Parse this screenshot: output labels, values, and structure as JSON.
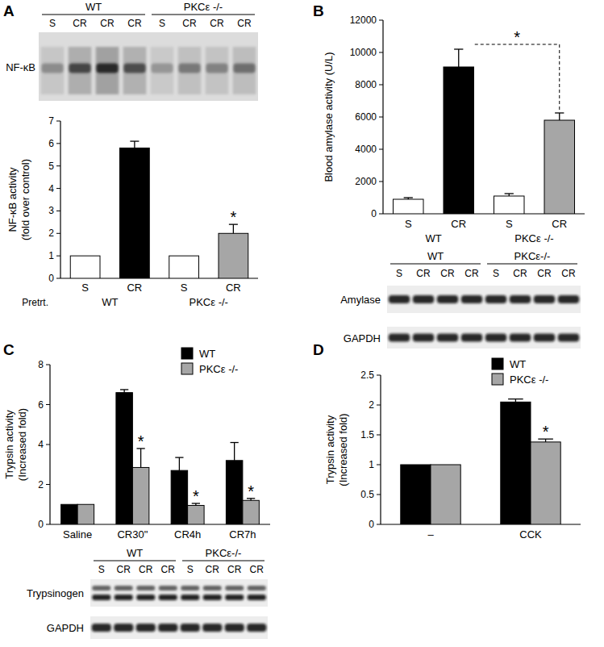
{
  "chart_data": [
    {
      "type": "bar",
      "panel": "A",
      "y_label": [
        "NF-κB activity",
        "(fold over control)"
      ],
      "x_label": "Pretrt.",
      "categories": [
        "S",
        "CR",
        "S",
        "CR"
      ],
      "groups": [
        "WT",
        "PKCε -/-"
      ],
      "values": [
        1,
        5.8,
        1,
        2
      ],
      "errors": [
        null,
        0.3,
        null,
        0.4
      ],
      "colors": [
        "#ffffff",
        "#000000",
        "#ffffff",
        "#a6a6a6"
      ],
      "ylim": [
        0,
        7
      ],
      "yticks": [
        0,
        1,
        2,
        3,
        4,
        5,
        6,
        7
      ],
      "grid": false,
      "annotations": [
        {
          "text": "*",
          "category": 3
        }
      ],
      "blot": {
        "groups": [
          "WT",
          "PKCε -/-"
        ],
        "lanes": [
          "S",
          "CR",
          "CR",
          "CR",
          "S",
          "CR",
          "CR",
          "CR"
        ],
        "rows": [
          "NF-κB"
        ]
      }
    },
    {
      "type": "bar",
      "panel": "B",
      "y_label": [
        "Blood amylase activity  (U/L)"
      ],
      "categories": [
        "S",
        "CR",
        "S",
        "CR"
      ],
      "groups": [
        "WT",
        "PKCε -/-"
      ],
      "values": [
        900,
        9100,
        1100,
        5800
      ],
      "errors": [
        100,
        1100,
        150,
        450
      ],
      "colors": [
        "#ffffff",
        "#000000",
        "#ffffff",
        "#a6a6a6"
      ],
      "ylim": [
        0,
        12000
      ],
      "yticks": [
        0,
        2000,
        4000,
        6000,
        8000,
        10000,
        12000
      ],
      "grid": false,
      "annotations": [
        {
          "text": "*",
          "bracket": [
            1,
            3
          ]
        }
      ],
      "blot": {
        "groups": [
          "WT",
          "PKCε-/-"
        ],
        "lanes": [
          "S",
          "CR",
          "CR",
          "CR",
          "S",
          "CR",
          "CR",
          "CR"
        ],
        "rows": [
          "Amylase",
          "GAPDH"
        ]
      }
    },
    {
      "type": "bar",
      "panel": "C",
      "y_label": [
        "Trypsin activity",
        "(Increased fold)"
      ],
      "categories": [
        "Saline",
        "CR30\"",
        "CR4h",
        "CR7h"
      ],
      "series": [
        {
          "name": "WT",
          "color": "#000000",
          "values": [
            1,
            6.6,
            2.7,
            3.2
          ],
          "errors": [
            null,
            0.15,
            0.65,
            0.9
          ]
        },
        {
          "name": "PKCε -/-",
          "color": "#a6a6a6",
          "values": [
            1,
            2.85,
            0.95,
            1.2
          ],
          "errors": [
            null,
            0.95,
            0.1,
            0.1
          ]
        }
      ],
      "ylim": [
        0,
        8
      ],
      "yticks": [
        0,
        2,
        4,
        6,
        8
      ],
      "grid": false,
      "legend": "top-right",
      "annotations": [
        {
          "text": "*",
          "series": 1,
          "category": 1
        },
        {
          "text": "*",
          "series": 1,
          "category": 2
        },
        {
          "text": "*",
          "series": 1,
          "category": 3
        }
      ],
      "blot": {
        "groups": [
          "WT",
          "PKCε-/-"
        ],
        "lanes": [
          "S",
          "CR",
          "CR",
          "CR",
          "S",
          "CR",
          "CR",
          "CR"
        ],
        "rows": [
          "Trypsinogen",
          "GAPDH"
        ]
      }
    },
    {
      "type": "bar",
      "panel": "D",
      "y_label": [
        "Trypsin activity",
        "(Increased fold)"
      ],
      "categories": [
        "–",
        "CCK"
      ],
      "series": [
        {
          "name": "WT",
          "color": "#000000",
          "values": [
            1,
            2.05
          ],
          "errors": [
            null,
            0.05
          ]
        },
        {
          "name": "PKCε -/-",
          "color": "#a6a6a6",
          "values": [
            1,
            1.38
          ],
          "errors": [
            null,
            0.05
          ]
        }
      ],
      "ylim": [
        0,
        2.5
      ],
      "yticks": [
        0,
        0.5,
        1,
        1.5,
        2,
        2.5
      ],
      "grid": false,
      "legend": "top-right",
      "annotations": [
        {
          "text": "*",
          "series": 1,
          "category": 1
        }
      ]
    }
  ]
}
